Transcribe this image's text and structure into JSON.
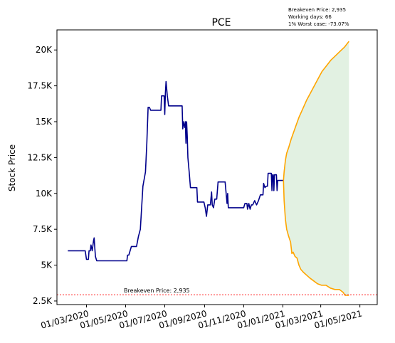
{
  "chart_data": {
    "type": "line",
    "title": "PCE",
    "xlabel": "",
    "ylabel": "Stock Price",
    "xlim": [
      "2020-01-15",
      "2021-05-28"
    ],
    "ylim": [
      2250,
      21400
    ],
    "x_ticks": [
      "2020-03-01",
      "2020-05-01",
      "2020-07-01",
      "2020-09-01",
      "2020-11-01",
      "2021-01-01",
      "2021-03-01",
      "2021-05-01"
    ],
    "x_tick_labels": [
      "01/03/2020",
      "01/05/2020",
      "01/07/2020",
      "01/09/2020",
      "01/11/2020",
      "01/01/2021",
      "01/03/2021",
      "01/05/2021"
    ],
    "y_ticks": [
      2500,
      5000,
      7500,
      10000,
      12500,
      15000,
      17500,
      20000
    ],
    "y_tick_labels": [
      "2.5K",
      "5K",
      "7.5K",
      "10K",
      "12.5K",
      "15K",
      "17.5K",
      "20K"
    ],
    "grid": false,
    "annotations": [
      "Breakeven Price: 2,935",
      "Working days: 66",
      "1% Worst case: -73.07%"
    ],
    "breakeven": {
      "value": 2935,
      "label": "Breakeven Price: 2,935",
      "color": "#ff0000"
    },
    "series": [
      {
        "color": "#00008b",
        "points": [
          [
            "2020-02-01",
            6000
          ],
          [
            "2020-02-10",
            6000
          ],
          [
            "2020-02-20",
            6000
          ],
          [
            "2020-02-28",
            6000
          ],
          [
            "2020-03-01",
            5400
          ],
          [
            "2020-03-04",
            5400
          ],
          [
            "2020-03-05",
            6000
          ],
          [
            "2020-03-07",
            6000
          ],
          [
            "2020-03-08",
            6400
          ],
          [
            "2020-03-10",
            6000
          ],
          [
            "2020-03-12",
            6700
          ],
          [
            "2020-03-13",
            6900
          ],
          [
            "2020-03-14",
            6200
          ],
          [
            "2020-03-15",
            5600
          ],
          [
            "2020-03-17",
            5300
          ],
          [
            "2020-04-01",
            5300
          ],
          [
            "2020-04-20",
            5300
          ],
          [
            "2020-05-03",
            5300
          ],
          [
            "2020-05-04",
            5700
          ],
          [
            "2020-05-06",
            5700
          ],
          [
            "2020-05-08",
            6000
          ],
          [
            "2020-05-10",
            6300
          ],
          [
            "2020-05-18",
            6300
          ],
          [
            "2020-05-21",
            7000
          ],
          [
            "2020-05-24",
            7500
          ],
          [
            "2020-05-26",
            9000
          ],
          [
            "2020-05-28",
            10500
          ],
          [
            "2020-06-01",
            11500
          ],
          [
            "2020-06-03",
            13500
          ],
          [
            "2020-06-05",
            16000
          ],
          [
            "2020-06-07",
            16000
          ],
          [
            "2020-06-09",
            15800
          ],
          [
            "2020-06-20",
            15800
          ],
          [
            "2020-06-25",
            15800
          ],
          [
            "2020-06-26",
            16800
          ],
          [
            "2020-06-30",
            16800
          ],
          [
            "2020-07-01",
            15500
          ],
          [
            "2020-07-02",
            17000
          ],
          [
            "2020-07-03",
            17800
          ],
          [
            "2020-07-05",
            16800
          ],
          [
            "2020-07-07",
            16100
          ],
          [
            "2020-07-20",
            16100
          ],
          [
            "2020-07-28",
            16100
          ],
          [
            "2020-07-29",
            14500
          ],
          [
            "2020-07-30",
            15000
          ],
          [
            "2020-08-01",
            14600
          ],
          [
            "2020-08-02",
            15000
          ],
          [
            "2020-08-03",
            13500
          ],
          [
            "2020-08-04",
            15000
          ],
          [
            "2020-08-05",
            14000
          ],
          [
            "2020-08-06",
            12500
          ],
          [
            "2020-08-08",
            11500
          ],
          [
            "2020-08-10",
            10400
          ],
          [
            "2020-08-15",
            10400
          ],
          [
            "2020-08-20",
            10400
          ],
          [
            "2020-08-21",
            9400
          ],
          [
            "2020-08-31",
            9400
          ],
          [
            "2020-09-02",
            9000
          ],
          [
            "2020-09-04",
            8400
          ],
          [
            "2020-09-06",
            9200
          ],
          [
            "2020-09-10",
            9200
          ],
          [
            "2020-09-12",
            10100
          ],
          [
            "2020-09-13",
            9200
          ],
          [
            "2020-09-15",
            9000
          ],
          [
            "2020-09-17",
            9600
          ],
          [
            "2020-09-20",
            9600
          ],
          [
            "2020-09-22",
            10800
          ],
          [
            "2020-10-03",
            10800
          ],
          [
            "2020-10-05",
            9800
          ],
          [
            "2020-10-06",
            9300
          ],
          [
            "2020-10-07",
            10000
          ],
          [
            "2020-10-08",
            9000
          ],
          [
            "2020-10-10",
            9000
          ],
          [
            "2020-10-30",
            9000
          ],
          [
            "2020-11-01",
            9000
          ],
          [
            "2020-11-03",
            9300
          ],
          [
            "2020-11-06",
            9300
          ],
          [
            "2020-11-07",
            8900
          ],
          [
            "2020-11-09",
            9300
          ],
          [
            "2020-11-11",
            8900
          ],
          [
            "2020-11-13",
            9200
          ],
          [
            "2020-11-15",
            9200
          ],
          [
            "2020-11-18",
            9500
          ],
          [
            "2020-11-21",
            9200
          ],
          [
            "2020-11-24",
            9500
          ],
          [
            "2020-11-27",
            9900
          ],
          [
            "2020-12-01",
            9900
          ],
          [
            "2020-12-02",
            10700
          ],
          [
            "2020-12-04",
            10400
          ],
          [
            "2020-12-06",
            10500
          ],
          [
            "2020-12-08",
            10500
          ],
          [
            "2020-12-09",
            11400
          ],
          [
            "2020-12-14",
            11400
          ],
          [
            "2020-12-15",
            10200
          ],
          [
            "2020-12-16",
            11300
          ],
          [
            "2020-12-17",
            11300
          ],
          [
            "2020-12-18",
            10200
          ],
          [
            "2020-12-19",
            11300
          ],
          [
            "2020-12-22",
            11300
          ],
          [
            "2020-12-23",
            10200
          ],
          [
            "2020-12-24",
            10900
          ],
          [
            "2021-01-02",
            10900
          ]
        ]
      },
      {
        "color": "#ffa500",
        "points": [
          [
            "2021-01-02",
            10900
          ],
          [
            "2021-01-03",
            11500
          ],
          [
            "2021-01-05",
            12300
          ],
          [
            "2021-01-07",
            12800
          ],
          [
            "2021-01-10",
            13200
          ],
          [
            "2021-01-14",
            13800
          ],
          [
            "2021-01-18",
            14300
          ],
          [
            "2021-01-22",
            14800
          ],
          [
            "2021-01-26",
            15300
          ],
          [
            "2021-02-01",
            15900
          ],
          [
            "2021-02-07",
            16500
          ],
          [
            "2021-02-13",
            17000
          ],
          [
            "2021-02-19",
            17500
          ],
          [
            "2021-02-25",
            18000
          ],
          [
            "2021-03-03",
            18500
          ],
          [
            "2021-03-10",
            18900
          ],
          [
            "2021-03-17",
            19300
          ],
          [
            "2021-03-24",
            19600
          ],
          [
            "2021-03-31",
            19900
          ],
          [
            "2021-04-07",
            20200
          ],
          [
            "2021-04-14",
            20600
          ]
        ]
      },
      {
        "color": "#ffa500",
        "points": [
          [
            "2021-01-02",
            10900
          ],
          [
            "2021-01-03",
            9500
          ],
          [
            "2021-01-05",
            8200
          ],
          [
            "2021-01-07",
            7500
          ],
          [
            "2021-01-10",
            7000
          ],
          [
            "2021-01-13",
            6600
          ],
          [
            "2021-01-15",
            5800
          ],
          [
            "2021-01-17",
            5900
          ],
          [
            "2021-01-20",
            5600
          ],
          [
            "2021-01-23",
            5500
          ],
          [
            "2021-01-26",
            5000
          ],
          [
            "2021-01-29",
            4700
          ],
          [
            "2021-02-02",
            4500
          ],
          [
            "2021-02-07",
            4300
          ],
          [
            "2021-02-12",
            4100
          ],
          [
            "2021-02-18",
            3900
          ],
          [
            "2021-02-24",
            3700
          ],
          [
            "2021-03-02",
            3600
          ],
          [
            "2021-03-09",
            3600
          ],
          [
            "2021-03-16",
            3400
          ],
          [
            "2021-03-23",
            3300
          ],
          [
            "2021-03-30",
            3300
          ],
          [
            "2021-04-05",
            3100
          ],
          [
            "2021-04-08",
            2900
          ],
          [
            "2021-04-14",
            2900
          ]
        ]
      }
    ],
    "confidence_band": {
      "from_series": [
        1,
        2
      ],
      "color": "#d8ecd8"
    }
  }
}
